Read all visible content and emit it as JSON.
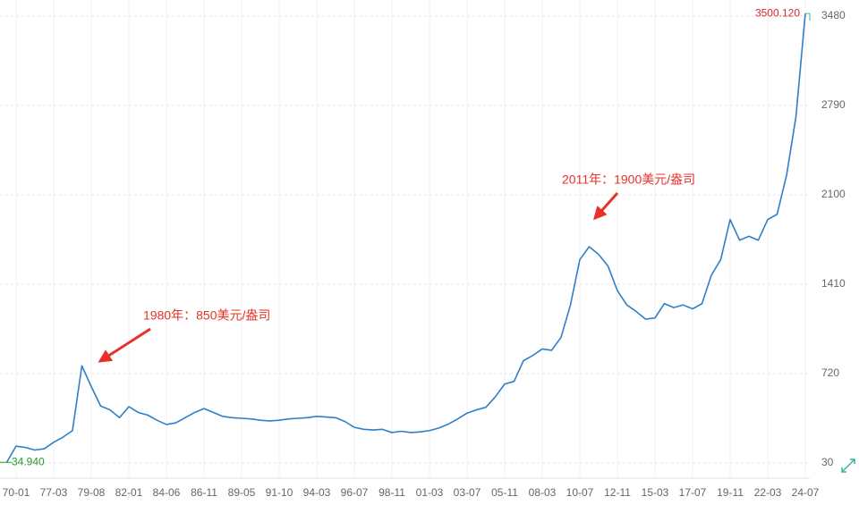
{
  "chart_data": {
    "type": "line",
    "color": "#2f7fc8",
    "categories": [
      null,
      "70-01",
      null,
      null,
      null,
      "77-03",
      null,
      null,
      null,
      "79-08",
      null,
      null,
      null,
      "82-01",
      null,
      null,
      null,
      "84-06",
      null,
      null,
      null,
      "86-11",
      null,
      null,
      null,
      "89-05",
      null,
      null,
      null,
      "91-10",
      null,
      null,
      null,
      "94-03",
      null,
      null,
      null,
      "96-07",
      null,
      null,
      null,
      "98-11",
      null,
      null,
      null,
      "01-03",
      null,
      null,
      null,
      "03-07",
      null,
      null,
      null,
      "05-11",
      null,
      null,
      null,
      "08-03",
      null,
      null,
      null,
      "10-07",
      null,
      null,
      null,
      "12-11",
      null,
      null,
      null,
      "15-03",
      null,
      null,
      null,
      "17-07",
      null,
      null,
      null,
      "19-11",
      null,
      null,
      null,
      "22-03",
      null,
      null,
      null,
      "24-07"
    ],
    "values": [
      34.94,
      160,
      150,
      130,
      140,
      190,
      230,
      280,
      780,
      620,
      470,
      440,
      380,
      465,
      420,
      400,
      360,
      327,
      340,
      380,
      420,
      450,
      420,
      390,
      380,
      375,
      370,
      360,
      355,
      360,
      370,
      375,
      380,
      390,
      385,
      380,
      350,
      305,
      290,
      285,
      290,
      265,
      275,
      265,
      270,
      280,
      300,
      330,
      370,
      415,
      440,
      460,
      540,
      640,
      660,
      820,
      860,
      910,
      900,
      1000,
      1250,
      1600,
      1700,
      1640,
      1550,
      1360,
      1250,
      1200,
      1140,
      1150,
      1260,
      1230,
      1250,
      1220,
      1260,
      1480,
      1600,
      1910,
      1750,
      1780,
      1750,
      1910,
      1950,
      2250,
      2700,
      3500.12
    ],
    "value_labels": [
      "34.940",
      null,
      null,
      null,
      null,
      null,
      null,
      null,
      null,
      null,
      null,
      null,
      null,
      null,
      null,
      null,
      null,
      null,
      null,
      null,
      null,
      null,
      null,
      null,
      null,
      null,
      null,
      null,
      null,
      null,
      null,
      null,
      null,
      null,
      null,
      null,
      null,
      null,
      null,
      null,
      null,
      null,
      null,
      null,
      null,
      null,
      null,
      null,
      null,
      null,
      null,
      null,
      null,
      null,
      null,
      null,
      null,
      null,
      null,
      null,
      null,
      null,
      null,
      null,
      null,
      null,
      null,
      null,
      null,
      null,
      null,
      null,
      null,
      null,
      null,
      null,
      null,
      null,
      null,
      null,
      null,
      null,
      null,
      null,
      null,
      "3500.120"
    ],
    "ylim": [
      30,
      3480
    ],
    "yticks": [
      30,
      720,
      1410,
      2100,
      2790,
      3480
    ],
    "grid": true,
    "annotations": [
      "1980年：850美元/盎司",
      "2011年：1900美元/盎司"
    ]
  }
}
